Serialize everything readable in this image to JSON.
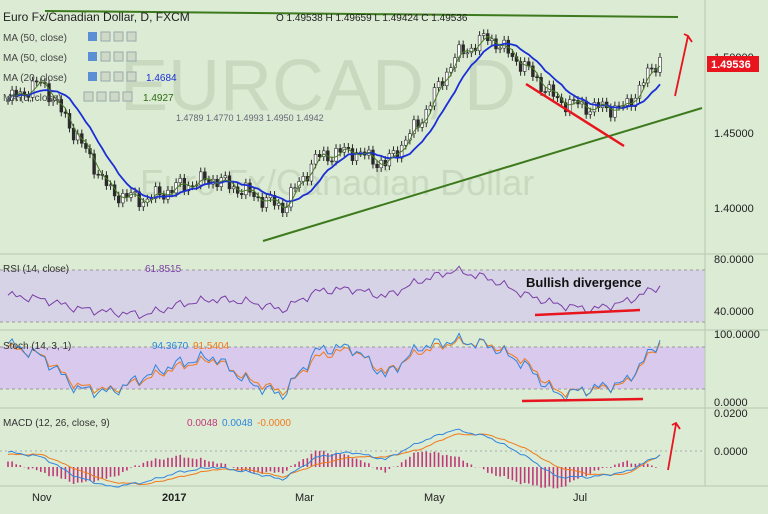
{
  "header": {
    "symbol": "Euro Fx/Canadian Dollar, D, FXCM",
    "ohlc": "O 1.49538  H 1.49659  L 1.49424  C 1.49536",
    "watermark_main": "EURCAD, D",
    "watermark_sub": "Euro Fx/Canadian Dollar"
  },
  "indicators": {
    "ma_rows": [
      {
        "label": "MA (50, close)",
        "value": ""
      },
      {
        "label": "MA (50, close)",
        "value": ""
      },
      {
        "label": "MA (20, close)",
        "value": "1.4684"
      },
      {
        "label": "MA (5, close)",
        "value": "1.4927"
      }
    ],
    "extra_values": "1.4789  1.4770  1.4993  1.4950  1.4942"
  },
  "price_label": "1.49536",
  "annotations": {
    "bullish_divergence": "Bullish divergence"
  },
  "colors": {
    "background": "#dcebd4",
    "candle": "#2a2a2a",
    "ma_blue": "#1a2fd6",
    "ma_green": "#4a7a2a",
    "trend": "#3d7a1e",
    "red": "#e8141e",
    "rsi_line": "#7a3fa6",
    "stoch_k": "#2e86de",
    "stoch_d": "#f07a1a",
    "macd_hist": "#c0397a",
    "rsi_band": "#d7d3e6",
    "stoch_band": "#d9c9ec"
  },
  "chart_data": [
    {
      "type": "line",
      "name": "price",
      "title": "Euro Fx/Canadian Dollar, D, FXCM",
      "ylim": [
        1.36,
        1.53
      ],
      "yticks": [
        "1.50000",
        "1.45000",
        "1.40000"
      ],
      "xticks": [
        "Nov",
        "2017",
        "Mar",
        "May",
        "Jul"
      ],
      "x": [
        "2016-10-20",
        "2016-11-05",
        "2016-11-20",
        "2016-12-05",
        "2016-12-20",
        "2017-01-05",
        "2017-01-20",
        "2017-02-05",
        "2017-02-20",
        "2017-03-05",
        "2017-03-20",
        "2017-04-05",
        "2017-04-20",
        "2017-05-05",
        "2017-05-20",
        "2017-06-05",
        "2017-06-20",
        "2017-07-05",
        "2017-07-20",
        "2017-08-01"
      ],
      "close": [
        1.465,
        1.478,
        1.44,
        1.4,
        1.395,
        1.405,
        1.41,
        1.4,
        1.39,
        1.425,
        1.43,
        1.42,
        1.45,
        1.495,
        1.51,
        1.49,
        1.465,
        1.46,
        1.46,
        1.495
      ],
      "series": [
        {
          "name": "MA (20, close)",
          "last": 1.4684
        },
        {
          "name": "MA (5, close)",
          "last": 1.4927
        }
      ],
      "last_close": 1.49536
    },
    {
      "type": "line",
      "name": "rsi",
      "title": "RSI (14, close)",
      "value": 61.8515,
      "ylim": [
        30,
        85
      ],
      "yticks": [
        "80.0000",
        "40.0000"
      ],
      "band": [
        70,
        30
      ],
      "values": [
        55,
        52,
        45,
        42,
        40,
        48,
        52,
        50,
        44,
        58,
        60,
        54,
        66,
        74,
        68,
        56,
        48,
        44,
        50,
        62
      ]
    },
    {
      "type": "line",
      "name": "stoch",
      "title": "Stoch (14, 3, 1)",
      "values_label": [
        "94.3670",
        "91.5404"
      ],
      "ylim": [
        -5,
        105
      ],
      "yticks": [
        "100.0000",
        "0.0000"
      ],
      "band": [
        80,
        20
      ],
      "k": [
        90,
        70,
        20,
        15,
        40,
        60,
        70,
        30,
        10,
        80,
        85,
        40,
        85,
        95,
        88,
        60,
        10,
        20,
        30,
        95
      ],
      "d": [
        85,
        72,
        25,
        18,
        35,
        55,
        66,
        35,
        15,
        70,
        82,
        45,
        78,
        92,
        90,
        65,
        15,
        18,
        28,
        91
      ]
    },
    {
      "type": "bar",
      "name": "macd",
      "title": "MACD (12, 26, close, 9)",
      "values_label": [
        "0.0048",
        "0.0048",
        "-0.0000"
      ],
      "ylim": [
        -0.006,
        0.022
      ],
      "yticks": [
        "0.0200",
        "0.0000"
      ],
      "macd": [
        0.006,
        0.004,
        -0.004,
        -0.008,
        -0.006,
        -0.002,
        0.0,
        -0.002,
        -0.005,
        0.004,
        0.006,
        0.003,
        0.01,
        0.015,
        0.012,
        0.005,
        -0.004,
        -0.004,
        -0.002,
        0.0048
      ],
      "signal": [
        0.005,
        0.005,
        -0.001,
        -0.006,
        -0.007,
        -0.004,
        -0.001,
        -0.001,
        -0.004,
        0.001,
        0.004,
        0.004,
        0.007,
        0.013,
        0.013,
        0.008,
        0.0,
        -0.003,
        -0.003,
        0.0048
      ]
    }
  ]
}
